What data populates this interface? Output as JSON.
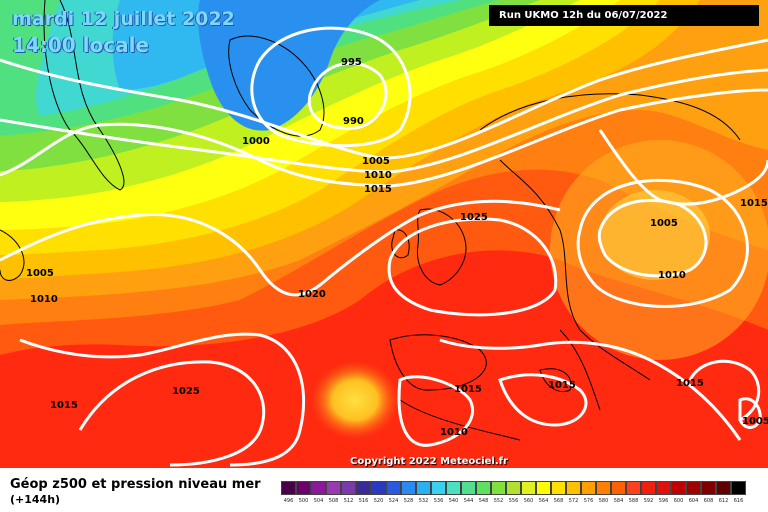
{
  "header": {
    "date_title": "mardi 12 juillet 2022",
    "time_title": "14:00 locale",
    "run_info": "Run UKMO 12h du 06/07/2022"
  },
  "map": {
    "isobar_labels": [
      "995",
      "990",
      "1000",
      "1005",
      "1010",
      "1015",
      "1025",
      "1005",
      "1015",
      "1005",
      "1010",
      "1020",
      "1015",
      "1025",
      "1015",
      "1010",
      "1015",
      "1015",
      "1005",
      "1010"
    ],
    "copyright": "Copyright 2022 Meteociel.fr"
  },
  "legend": {
    "title": "Géop z500 et pression niveau mer",
    "subtitle": "(+144h)",
    "scale_values": [
      "496",
      "500",
      "504",
      "508",
      "512",
      "516",
      "520",
      "524",
      "528",
      "532",
      "536",
      "540",
      "544",
      "548",
      "552",
      "556",
      "560",
      "564",
      "568",
      "572",
      "576",
      "580",
      "584",
      "588",
      "592",
      "596",
      "600",
      "604",
      "608",
      "612",
      "616"
    ],
    "scale_colors": [
      "#4a0048",
      "#6a006a",
      "#8a1a9a",
      "#9a3ab0",
      "#7a3aa8",
      "#3a2a9a",
      "#2a3ac0",
      "#2a5ae0",
      "#2a8af0",
      "#2ab0f0",
      "#3ad0f0",
      "#4ae0c0",
      "#50e090",
      "#60e060",
      "#80e040",
      "#b0e030",
      "#e0f020",
      "#ffff00",
      "#ffe000",
      "#ffc000",
      "#ffa000",
      "#ff8000",
      "#ff6000",
      "#ff4020",
      "#f02010",
      "#e01010",
      "#c00000",
      "#a00000",
      "#800000",
      "#600000",
      "#000000"
    ]
  }
}
